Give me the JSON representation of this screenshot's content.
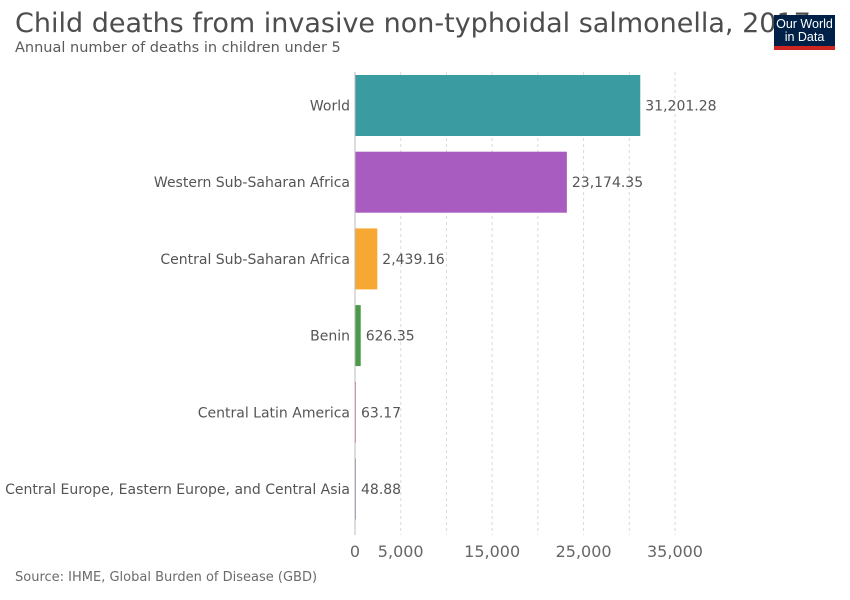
{
  "header": {
    "title": "Child deaths from invasive non-typhoidal salmonella, 2017",
    "subtitle": "Annual number of deaths in children under 5"
  },
  "logo": {
    "line1": "Our World",
    "line2": "in Data"
  },
  "footer": {
    "source": "Source: IHME, Global Burden of Disease (GBD)"
  },
  "chart_data": {
    "type": "bar",
    "orientation": "horizontal",
    "categories": [
      "World",
      "Western Sub-Saharan Africa",
      "Central Sub-Saharan Africa",
      "Benin",
      "Central Latin America",
      "Central Europe, Eastern Europe, and Central Asia"
    ],
    "values": [
      31201.28,
      23174.35,
      2439.16,
      626.35,
      63.17,
      48.88
    ],
    "value_labels": [
      "31,201.28",
      "23,174.35",
      "2,439.16",
      "626.35",
      "63.17",
      "48.88"
    ],
    "colors": [
      "#3a9ba0",
      "#a95cbf",
      "#f6a832",
      "#4a9a4a",
      "#e07a86",
      "#8a97ad"
    ],
    "xlim": [
      0,
      35000
    ],
    "ticks": [
      0,
      5000,
      15000,
      25000,
      35000
    ],
    "tick_labels": [
      "0",
      "5,000",
      "15,000",
      "25,000",
      "35,000"
    ],
    "gridlines_at": [
      5000,
      10000,
      15000,
      20000,
      25000,
      30000,
      35000
    ],
    "grid": true
  }
}
